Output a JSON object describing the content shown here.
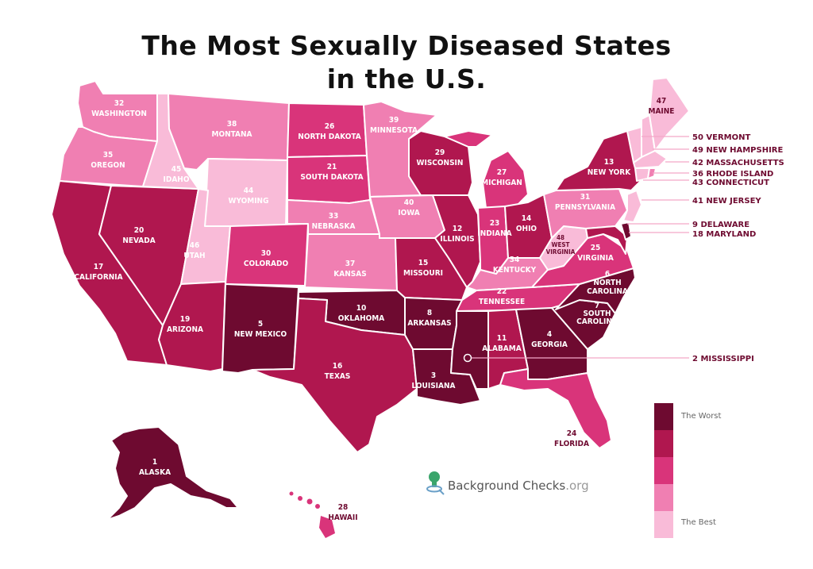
{
  "title": {
    "line1": "The Most Sexually Diseased States",
    "line2": "in the U.S."
  },
  "colors": {
    "rank_1_10": "#6e0a30",
    "rank_11_20": "#b0174f",
    "rank_21_30": "#d9347a",
    "rank_31_40": "#f07fb2",
    "rank_41_50": "#f9bbd8",
    "leader": "#f3a6c8"
  },
  "states": [
    {
      "id": "washington",
      "rank": "32",
      "name": "WASHINGTON"
    },
    {
      "id": "oregon",
      "rank": "35",
      "name": "OREGON"
    },
    {
      "id": "california",
      "rank": "17",
      "name": "CALIFORNIA"
    },
    {
      "id": "nevada",
      "rank": "20",
      "name": "NEVADA"
    },
    {
      "id": "idaho",
      "rank": "45",
      "name": "IDAHO"
    },
    {
      "id": "montana",
      "rank": "38",
      "name": "MONTANA"
    },
    {
      "id": "wyoming",
      "rank": "44",
      "name": "WYOMING"
    },
    {
      "id": "utah",
      "rank": "46",
      "name": "UTAH"
    },
    {
      "id": "arizona",
      "rank": "19",
      "name": "ARIZONA"
    },
    {
      "id": "colorado",
      "rank": "30",
      "name": "COLORADO"
    },
    {
      "id": "newmexico",
      "rank": "5",
      "name": "NEW MEXICO"
    },
    {
      "id": "northdakota",
      "rank": "26",
      "name": "NORTH DAKOTA"
    },
    {
      "id": "southdakota",
      "rank": "21",
      "name": "SOUTH DAKOTA"
    },
    {
      "id": "nebraska",
      "rank": "33",
      "name": "NEBRASKA"
    },
    {
      "id": "kansas",
      "rank": "37",
      "name": "KANSAS"
    },
    {
      "id": "oklahoma",
      "rank": "10",
      "name": "OKLAHOMA"
    },
    {
      "id": "texas",
      "rank": "16",
      "name": "TEXAS"
    },
    {
      "id": "minnesota",
      "rank": "39",
      "name": "MINNESOTA"
    },
    {
      "id": "iowa",
      "rank": "40",
      "name": "IOWA"
    },
    {
      "id": "missouri",
      "rank": "15",
      "name": "MISSOURI"
    },
    {
      "id": "arkansas",
      "rank": "8",
      "name": "ARKANSAS"
    },
    {
      "id": "louisiana",
      "rank": "3",
      "name": "LOUISIANA"
    },
    {
      "id": "wisconsin",
      "rank": "29",
      "name": "WISCONSIN"
    },
    {
      "id": "illinois",
      "rank": "12",
      "name": "ILLINOIS"
    },
    {
      "id": "michigan",
      "rank": "27",
      "name": "MICHIGAN"
    },
    {
      "id": "indiana",
      "rank": "23",
      "name": "INDIANA"
    },
    {
      "id": "ohio",
      "rank": "14",
      "name": "OHIO"
    },
    {
      "id": "kentucky",
      "rank": "34",
      "name": "KENTUCKY"
    },
    {
      "id": "tennessee",
      "rank": "22",
      "name": "TENNESSEE"
    },
    {
      "id": "alabama",
      "rank": "11",
      "name": "ALABAMA"
    },
    {
      "id": "georgia",
      "rank": "4",
      "name": "GEORGIA"
    },
    {
      "id": "florida",
      "rank": "24",
      "name": "FLORIDA"
    },
    {
      "id": "southcarolina",
      "rank": "7",
      "name1": "SOUTH",
      "name2": "CAROLINA"
    },
    {
      "id": "northcarolina",
      "rank": "6",
      "name1": "NORTH",
      "name2": "CAROLINA"
    },
    {
      "id": "virginia",
      "rank": "25",
      "name": "VIRGINIA"
    },
    {
      "id": "westvirginia",
      "rank": "48",
      "name1": "WEST",
      "name2": "VIRGINIA"
    },
    {
      "id": "pennsylvania",
      "rank": "31",
      "name": "PENNSYLVANIA"
    },
    {
      "id": "newyork",
      "rank": "13",
      "name": "NEW YORK"
    },
    {
      "id": "maine",
      "rank": "47",
      "name": "MAINE"
    },
    {
      "id": "alaska",
      "rank": "1",
      "name": "ALASKA"
    },
    {
      "id": "hawaii",
      "rank": "28",
      "name": "HAWAII"
    }
  ],
  "callouts": [
    "50 VERMONT",
    "49 NEW HAMPSHIRE",
    "42 MASSACHUSETTS",
    "36 RHODE ISLAND",
    "43 CONNECTICUT",
    "41 NEW JERSEY",
    "9 DELAWARE",
    "18 MARYLAND",
    "2 MISSISSIPPI"
  ],
  "legend": {
    "worst": "The Worst",
    "best": "The Best"
  },
  "logo": {
    "name": "Background Checks",
    "tld": ".org"
  }
}
